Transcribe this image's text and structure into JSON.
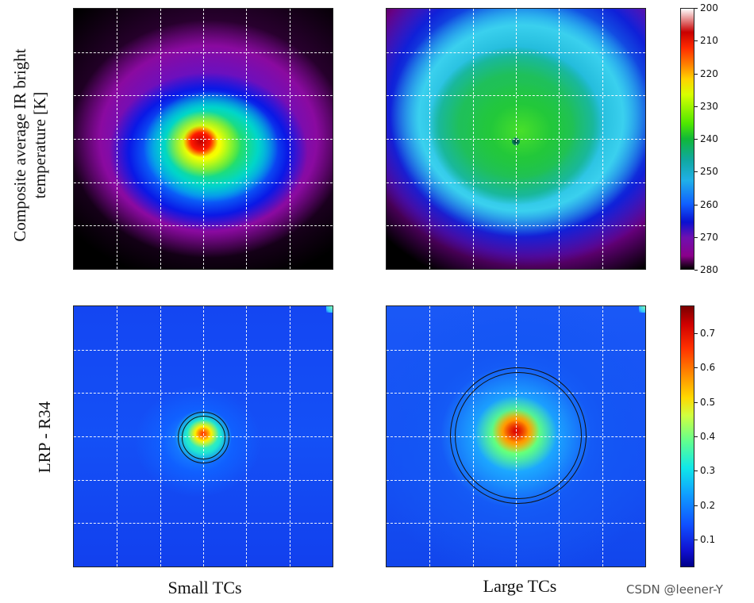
{
  "chart_data": [
    {
      "type": "heatmap",
      "panel": "top-left",
      "row_label": "Composite average IR bright temperature [K]",
      "col_label": "Small TCs",
      "colorbar": "ir_temperature",
      "grid": true
    },
    {
      "type": "heatmap",
      "panel": "top-right",
      "row_label": "Composite average IR bright temperature [K]",
      "col_label": "Large TCs",
      "colorbar": "ir_temperature",
      "grid": true
    },
    {
      "type": "heatmap",
      "panel": "bottom-left",
      "row_label": "LRP - R34",
      "col_label": "Small TCs",
      "colorbar": "lrp_relevance",
      "grid": true
    },
    {
      "type": "heatmap",
      "panel": "bottom-right",
      "row_label": "LRP - R34",
      "col_label": "Large TCs",
      "colorbar": "lrp_relevance",
      "grid": true
    }
  ],
  "labels": {
    "row_top_line1": "Composite average IR bright",
    "row_top_line2": "temperature [K]",
    "row_bottom": "LRP - R34",
    "col_left": "Small TCs",
    "col_right": "Large TCs",
    "watermark": "CSDN @leener-Y"
  },
  "colorbars": {
    "ir_temperature": {
      "ticks": [
        "200",
        "210",
        "220",
        "230",
        "240",
        "250",
        "260",
        "270",
        "280"
      ],
      "range": [
        200,
        280
      ],
      "direction": "top-to-bottom"
    },
    "lrp_relevance": {
      "ticks": [
        "0.7",
        "0.6",
        "0.5",
        "0.4",
        "0.3",
        "0.2",
        "0.1"
      ],
      "range": [
        0.02,
        0.78
      ],
      "direction": "bottom-to-top"
    }
  }
}
